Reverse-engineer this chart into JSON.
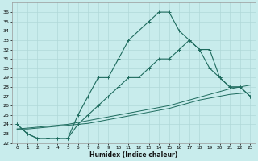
{
  "xlabel": "Humidex (Indice chaleur)",
  "background_color": "#c8ecec",
  "grid_color": "#b0d8d8",
  "line_color": "#1e6b5e",
  "xlim": [
    -0.5,
    23.5
  ],
  "ylim": [
    22,
    37
  ],
  "xticks": [
    0,
    1,
    2,
    3,
    4,
    5,
    6,
    7,
    8,
    9,
    10,
    11,
    12,
    13,
    14,
    15,
    16,
    17,
    18,
    19,
    20,
    21,
    22,
    23
  ],
  "yticks": [
    22,
    23,
    24,
    25,
    26,
    27,
    28,
    29,
    30,
    31,
    32,
    33,
    34,
    35,
    36
  ],
  "line1_x": [
    0,
    1,
    2,
    3,
    4,
    5,
    6,
    7,
    8,
    9,
    10,
    11,
    12,
    13,
    14,
    15,
    16,
    17,
    18,
    19,
    20,
    21,
    22,
    23
  ],
  "line1_y": [
    24,
    23,
    22.5,
    22.5,
    22.5,
    22.5,
    25,
    27,
    29,
    29,
    31,
    33,
    34,
    35,
    36,
    36,
    34,
    33,
    32,
    32,
    29,
    28,
    28,
    27
  ],
  "line2_x": [
    0,
    1,
    2,
    3,
    4,
    5,
    6,
    7,
    8,
    9,
    10,
    11,
    12,
    13,
    14,
    15,
    16,
    17,
    18,
    19,
    20,
    21,
    22,
    23
  ],
  "line2_y": [
    24,
    23,
    22.5,
    22.5,
    22.5,
    22.5,
    24,
    25,
    26,
    27,
    28,
    29,
    29,
    30,
    31,
    31,
    32,
    33,
    32,
    30,
    29,
    28,
    28,
    27
  ],
  "line3_x": [
    0,
    1,
    2,
    3,
    4,
    5,
    6,
    7,
    8,
    9,
    10,
    11,
    12,
    13,
    14,
    15,
    16,
    17,
    18,
    19,
    20,
    21,
    22,
    23
  ],
  "line3_y": [
    23.5,
    23.6,
    23.7,
    23.8,
    23.9,
    24.0,
    24.2,
    24.4,
    24.6,
    24.8,
    25.0,
    25.2,
    25.4,
    25.6,
    25.8,
    26.0,
    26.3,
    26.6,
    26.9,
    27.2,
    27.5,
    27.8,
    28.0,
    28.2
  ],
  "line4_x": [
    0,
    1,
    2,
    3,
    4,
    5,
    6,
    7,
    8,
    9,
    10,
    11,
    12,
    13,
    14,
    15,
    16,
    17,
    18,
    19,
    20,
    21,
    22,
    23
  ],
  "line4_y": [
    23.5,
    23.5,
    23.6,
    23.7,
    23.8,
    23.9,
    24.0,
    24.1,
    24.3,
    24.5,
    24.7,
    24.9,
    25.1,
    25.3,
    25.5,
    25.7,
    26.0,
    26.3,
    26.6,
    26.8,
    27.0,
    27.2,
    27.3,
    27.4
  ]
}
